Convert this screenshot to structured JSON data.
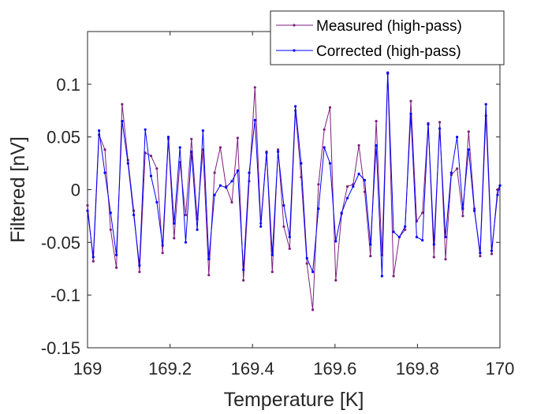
{
  "chart_data": {
    "type": "line",
    "title": "",
    "xlabel": "Temperature [K]",
    "ylabel": "Filtered [nV]",
    "xlim": [
      169,
      170
    ],
    "ylim": [
      -0.15,
      0.15
    ],
    "xticks": [
      169,
      169.2,
      169.4,
      169.6,
      169.8,
      170
    ],
    "xtick_labels": [
      "169",
      "169.2",
      "169.4",
      "169.6",
      "169.8",
      "170"
    ],
    "yticks": [
      -0.15,
      -0.1,
      -0.05,
      0,
      0.05,
      0.1
    ],
    "ytick_labels": [
      "-0.15",
      "-0.1",
      "-0.05",
      "0",
      "0.05",
      "0.1"
    ],
    "grid": false,
    "legend_position": "top-right",
    "x": [
      169.0,
      169.014,
      169.028,
      169.042,
      169.056,
      169.07,
      169.084,
      169.098,
      169.112,
      169.126,
      169.14,
      169.154,
      169.168,
      169.182,
      169.196,
      169.21,
      169.224,
      169.238,
      169.252,
      169.266,
      169.28,
      169.294,
      169.308,
      169.322,
      169.336,
      169.35,
      169.364,
      169.378,
      169.392,
      169.406,
      169.42,
      169.434,
      169.448,
      169.462,
      169.476,
      169.49,
      169.504,
      169.518,
      169.532,
      169.546,
      169.56,
      169.574,
      169.588,
      169.602,
      169.616,
      169.63,
      169.644,
      169.658,
      169.672,
      169.686,
      169.7,
      169.714,
      169.728,
      169.742,
      169.756,
      169.77,
      169.784,
      169.798,
      169.812,
      169.826,
      169.84,
      169.854,
      169.868,
      169.882,
      169.896,
      169.91,
      169.924,
      169.938,
      169.952,
      169.966,
      169.98,
      169.994,
      170.0
    ],
    "series": [
      {
        "name": "Measured (high-pass)",
        "color": "#7E1E80",
        "values": [
          -0.015,
          -0.068,
          0.052,
          0.038,
          -0.038,
          -0.074,
          0.081,
          0.028,
          -0.02,
          -0.078,
          0.035,
          0.032,
          0.02,
          -0.06,
          0.048,
          -0.046,
          0.026,
          -0.024,
          0.048,
          -0.028,
          0.038,
          -0.081,
          0.016,
          0.04,
          0.003,
          -0.012,
          0.049,
          -0.086,
          0.008,
          0.097,
          -0.032,
          0.036,
          -0.078,
          0.038,
          -0.035,
          -0.056,
          0.075,
          0.012,
          -0.07,
          -0.114,
          0.005,
          0.057,
          0.078,
          -0.086,
          -0.023,
          0.003,
          0.005,
          0.042,
          -0.002,
          -0.063,
          0.065,
          -0.062,
          0.11,
          -0.082,
          -0.045,
          -0.038,
          0.084,
          -0.03,
          -0.022,
          0.063,
          -0.064,
          0.064,
          -0.066,
          0.014,
          0.02,
          -0.025,
          0.055,
          -0.018,
          -0.063,
          0.07,
          -0.061,
          0.0,
          0.004
        ]
      },
      {
        "name": "Corrected (high-pass)",
        "color": "#0000FF",
        "values": [
          -0.02,
          -0.064,
          0.056,
          0.016,
          -0.022,
          -0.062,
          0.065,
          0.025,
          -0.024,
          -0.072,
          0.057,
          0.013,
          -0.012,
          -0.053,
          0.05,
          -0.032,
          0.04,
          -0.05,
          0.036,
          -0.038,
          0.056,
          -0.066,
          -0.005,
          0.004,
          0.002,
          0.008,
          0.018,
          -0.076,
          0.016,
          0.066,
          -0.035,
          0.035,
          -0.062,
          0.036,
          -0.015,
          -0.045,
          0.079,
          0.025,
          -0.065,
          -0.078,
          -0.018,
          0.04,
          0.025,
          -0.049,
          -0.022,
          -0.008,
          0.003,
          0.015,
          0.009,
          -0.052,
          0.042,
          -0.082,
          0.111,
          -0.04,
          -0.045,
          -0.035,
          0.072,
          -0.045,
          -0.048,
          0.062,
          -0.052,
          0.058,
          -0.045,
          0.016,
          0.05,
          -0.018,
          0.038,
          -0.02,
          -0.06,
          0.081,
          -0.058,
          -0.005,
          0.004
        ]
      }
    ]
  }
}
